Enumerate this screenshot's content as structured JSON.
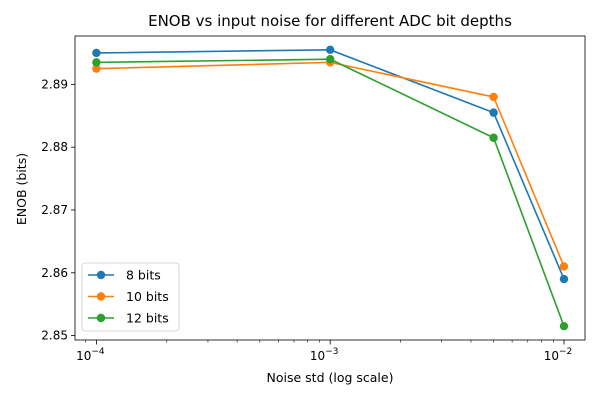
{
  "chart_data": {
    "type": "line",
    "title": "ENOB vs input noise for different ADC bit depths",
    "xlabel": "Noise std (log scale)",
    "ylabel": "ENOB (bits)",
    "xscale": "log",
    "x": [
      0.0001,
      0.001,
      0.005,
      0.01
    ],
    "xlim": [
      8.1e-05,
      0.0123
    ],
    "ylim": [
      2.8493,
      2.8977
    ],
    "x_ticks": [
      {
        "value": 0.0001,
        "base": "10",
        "exp": "−4"
      },
      {
        "value": 0.001,
        "base": "10",
        "exp": "−3"
      },
      {
        "value": 0.01,
        "base": "10",
        "exp": "−2"
      }
    ],
    "y_ticks": [
      {
        "value": 2.85,
        "label": "2.85"
      },
      {
        "value": 2.86,
        "label": "2.86"
      },
      {
        "value": 2.87,
        "label": "2.87"
      },
      {
        "value": 2.88,
        "label": "2.88"
      },
      {
        "value": 2.89,
        "label": "2.89"
      }
    ],
    "grid": false,
    "legend": "lower left",
    "series": [
      {
        "name": "8 bits",
        "color": "#1f77b4",
        "values": [
          2.895,
          2.8955,
          2.8855,
          2.859
        ]
      },
      {
        "name": "10 bits",
        "color": "#ff7f0e",
        "values": [
          2.8925,
          2.8935,
          2.888,
          2.861
        ]
      },
      {
        "name": "12 bits",
        "color": "#2ca02c",
        "values": [
          2.8935,
          2.894,
          2.8815,
          2.8515
        ]
      }
    ]
  }
}
